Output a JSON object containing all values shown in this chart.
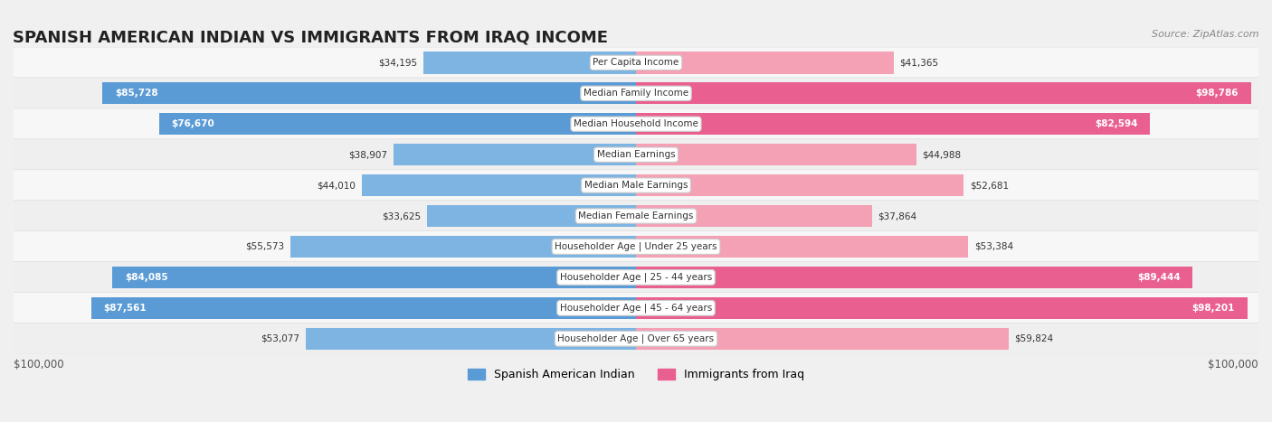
{
  "title": "SPANISH AMERICAN INDIAN VS IMMIGRANTS FROM IRAQ INCOME",
  "source": "Source: ZipAtlas.com",
  "categories": [
    "Per Capita Income",
    "Median Family Income",
    "Median Household Income",
    "Median Earnings",
    "Median Male Earnings",
    "Median Female Earnings",
    "Householder Age | Under 25 years",
    "Householder Age | 25 - 44 years",
    "Householder Age | 45 - 64 years",
    "Householder Age | Over 65 years"
  ],
  "left_values": [
    34195,
    85728,
    76670,
    38907,
    44010,
    33625,
    55573,
    84085,
    87561,
    53077
  ],
  "right_values": [
    41365,
    98786,
    82594,
    44988,
    52681,
    37864,
    53384,
    89444,
    98201,
    59824
  ],
  "left_labels": [
    "$34,195",
    "$85,728",
    "$76,670",
    "$38,907",
    "$44,010",
    "$33,625",
    "$55,573",
    "$84,085",
    "$87,561",
    "$53,077"
  ],
  "right_labels": [
    "$41,365",
    "$98,786",
    "$82,594",
    "$44,988",
    "$52,681",
    "$37,864",
    "$53,384",
    "$89,444",
    "$98,201",
    "$59,824"
  ],
  "max_value": 100000,
  "left_color": "#7eb4e2",
  "left_color_dark": "#5b9bd5",
  "right_color": "#f4a0b5",
  "right_color_dark": "#e96090",
  "legend_left": "Spanish American Indian",
  "legend_right": "Immigrants from Iraq",
  "bg_color": "#f0f0f0",
  "row_bg_light": "#ffffff",
  "row_bg_dark": "#e8e8e8",
  "title_color": "#222222",
  "source_color": "#888888",
  "x_axis_label_left": "$100,000",
  "x_axis_label_right": "$100,000"
}
